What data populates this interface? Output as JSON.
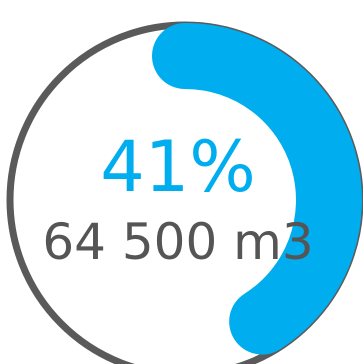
{
  "chart_data": {
    "type": "gauge",
    "percent": 41,
    "percent_label": "41%",
    "value_label": "64 500 m3"
  },
  "colors": {
    "track": "#5a5a5a",
    "progress": "#00aeef",
    "percent_text": "#00aeef",
    "value_text": "#555555"
  }
}
